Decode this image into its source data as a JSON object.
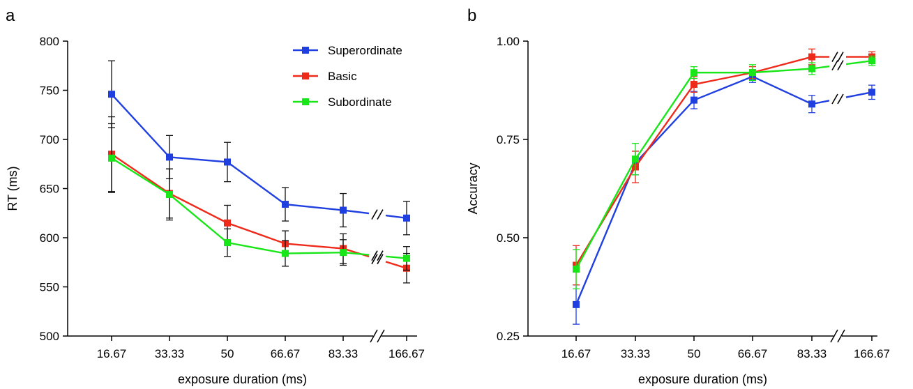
{
  "chart_data": [
    {
      "panel": "a",
      "type": "line",
      "ylabel": "RT (ms)",
      "xlabel": "exposure duration (ms)",
      "categories": [
        "16.67",
        "33.33",
        "50",
        "66.67",
        "83.33",
        "166.67"
      ],
      "ylim": [
        500,
        800
      ],
      "yticks": [
        "500",
        "550",
        "600",
        "650",
        "700",
        "750",
        "800"
      ],
      "axis_break_before_last": true,
      "legend": {
        "placement": "top-right"
      },
      "series": [
        {
          "name": "Superordinate",
          "color": "#1f3fe0",
          "values": [
            746,
            682,
            677,
            634,
            628,
            620
          ],
          "errors": [
            34,
            22,
            20,
            17,
            17,
            17
          ]
        },
        {
          "name": "Basic",
          "color": "#ee2a1b",
          "values": [
            685,
            645,
            615,
            594,
            589,
            569
          ],
          "errors": [
            38,
            25,
            18,
            13,
            15,
            15
          ]
        },
        {
          "name": "Subordinate",
          "color": "#19e619",
          "values": [
            681,
            644,
            595,
            584,
            585,
            579
          ],
          "errors": [
            35,
            26,
            14,
            13,
            13,
            12
          ]
        }
      ]
    },
    {
      "panel": "b",
      "type": "line",
      "ylabel": "Accuracy",
      "xlabel": "exposure duration (ms)",
      "categories": [
        "16.67",
        "33.33",
        "50",
        "66.67",
        "83.33",
        "166.67"
      ],
      "ylim": [
        0.25,
        1.0
      ],
      "yticks": [
        "0.25",
        "0.50",
        "0.75",
        "1.00"
      ],
      "axis_break_before_last": true,
      "series": [
        {
          "name": "Superordinate",
          "color": "#1f3fe0",
          "values": [
            0.33,
            0.69,
            0.85,
            0.91,
            0.84,
            0.87
          ],
          "errors": [
            0.05,
            0.03,
            0.022,
            0.015,
            0.022,
            0.018
          ]
        },
        {
          "name": "Basic",
          "color": "#ee2a1b",
          "values": [
            0.43,
            0.68,
            0.89,
            0.92,
            0.96,
            0.96
          ],
          "errors": [
            0.05,
            0.04,
            0.02,
            0.015,
            0.02,
            0.013
          ]
        },
        {
          "name": "Subordinate",
          "color": "#19e619",
          "values": [
            0.42,
            0.7,
            0.92,
            0.92,
            0.93,
            0.95
          ],
          "errors": [
            0.05,
            0.04,
            0.015,
            0.02,
            0.015,
            0.012
          ]
        }
      ]
    }
  ]
}
